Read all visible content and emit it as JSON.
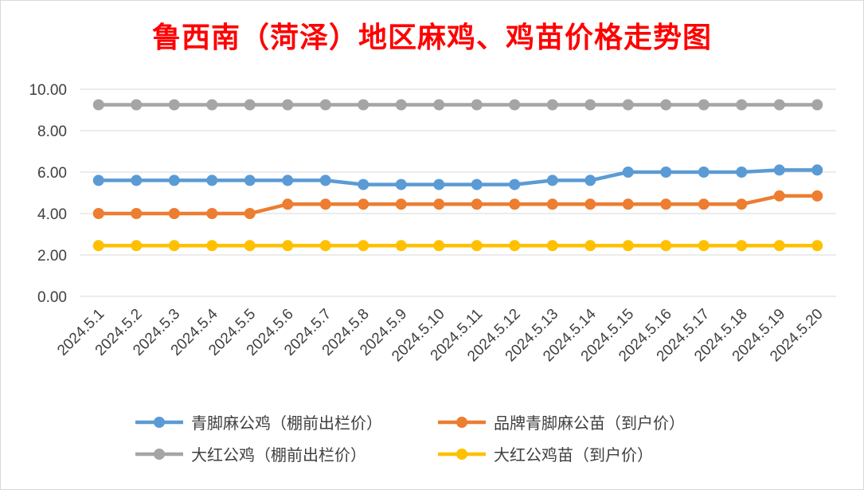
{
  "title": "鲁西南（菏泽）地区麻鸡、鸡苗价格走势图",
  "colors": {
    "title": "#ff0000",
    "grid": "#d9d9d9",
    "axis_text": "#404040"
  },
  "chart_data": {
    "type": "line",
    "title": "鲁西南（菏泽）地区麻鸡、鸡苗价格走势图",
    "xlabel": "",
    "ylabel": "",
    "ylim": [
      0,
      10
    ],
    "yticks": [
      "0.00",
      "2.00",
      "4.00",
      "6.00",
      "8.00",
      "10.00"
    ],
    "grid": true,
    "legend_position": "bottom",
    "categories": [
      "2024.5.1",
      "2024.5.2",
      "2024.5.3",
      "2024.5.4",
      "2024.5.5",
      "2024.5.6",
      "2024.5.7",
      "2024.5.8",
      "2024.5.9",
      "2024.5.10",
      "2024.5.11",
      "2024.5.12",
      "2024.5.13",
      "2024.5.14",
      "2024.5.15",
      "2024.5.16",
      "2024.5.17",
      "2024.5.18",
      "2024.5.19",
      "2024.5.20"
    ],
    "series": [
      {
        "name": "青脚麻公鸡（棚前出栏价）",
        "color": "#5b9bd5",
        "values": [
          5.6,
          5.6,
          5.6,
          5.6,
          5.6,
          5.6,
          5.6,
          5.4,
          5.4,
          5.4,
          5.4,
          5.4,
          5.6,
          5.6,
          6.0,
          6.0,
          6.0,
          6.0,
          6.1,
          6.1
        ]
      },
      {
        "name": "品牌青脚麻公苗（到户价）",
        "color": "#ed7d31",
        "values": [
          4.0,
          4.0,
          4.0,
          4.0,
          4.0,
          4.45,
          4.45,
          4.45,
          4.45,
          4.45,
          4.45,
          4.45,
          4.45,
          4.45,
          4.45,
          4.45,
          4.45,
          4.45,
          4.85,
          4.85
        ]
      },
      {
        "name": "大红公鸡（棚前出栏价）",
        "color": "#a5a5a5",
        "values": [
          9.25,
          9.25,
          9.25,
          9.25,
          9.25,
          9.25,
          9.25,
          9.25,
          9.25,
          9.25,
          9.25,
          9.25,
          9.25,
          9.25,
          9.25,
          9.25,
          9.25,
          9.25,
          9.25,
          9.25
        ]
      },
      {
        "name": "大红公鸡苗（到户价）",
        "color": "#ffc000",
        "values": [
          2.45,
          2.45,
          2.45,
          2.45,
          2.45,
          2.45,
          2.45,
          2.45,
          2.45,
          2.45,
          2.45,
          2.45,
          2.45,
          2.45,
          2.45,
          2.45,
          2.45,
          2.45,
          2.45,
          2.45
        ]
      }
    ]
  }
}
